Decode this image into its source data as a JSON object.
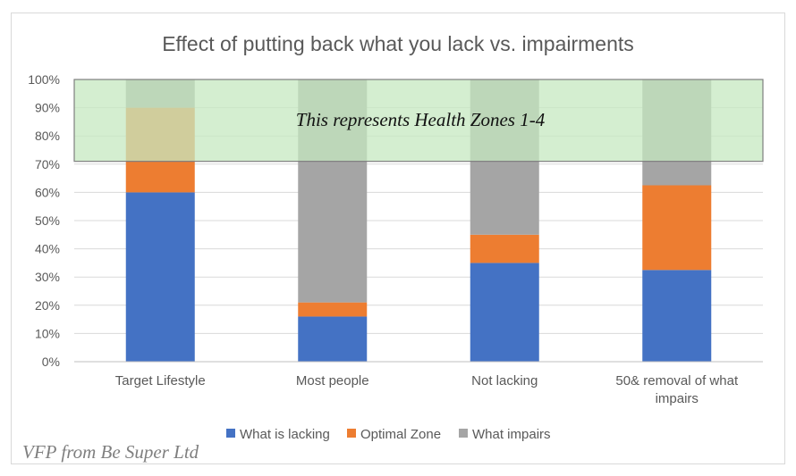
{
  "chart_data": {
    "type": "bar",
    "stacked": true,
    "percent": true,
    "title": "Effect of putting back what you lack vs. impairments",
    "categories": [
      "Target Lifestyle",
      "Most people",
      "Not lacking",
      "50& removal of what impairs"
    ],
    "series": [
      {
        "name": "What is lacking",
        "color": "#4472c4",
        "values": [
          60,
          16,
          35,
          32.5
        ]
      },
      {
        "name": "Optimal Zone",
        "color": "#ed7d31",
        "values": [
          30,
          5,
          10,
          30
        ]
      },
      {
        "name": "What impairs",
        "color": "#a5a5a5",
        "values": [
          10,
          79,
          55,
          37.5
        ]
      }
    ],
    "ylim": [
      0,
      100
    ],
    "yticks": [
      "0%",
      "10%",
      "20%",
      "30%",
      "40%",
      "50%",
      "60%",
      "70%",
      "80%",
      "90%",
      "100%"
    ],
    "grid": true,
    "legend_position": "bottom",
    "annotation": {
      "text": "This represents Health Zones 1-4",
      "range": [
        71,
        100
      ],
      "color": "#c6e8c0"
    }
  },
  "watermark": "VFP from Be Super Ltd"
}
